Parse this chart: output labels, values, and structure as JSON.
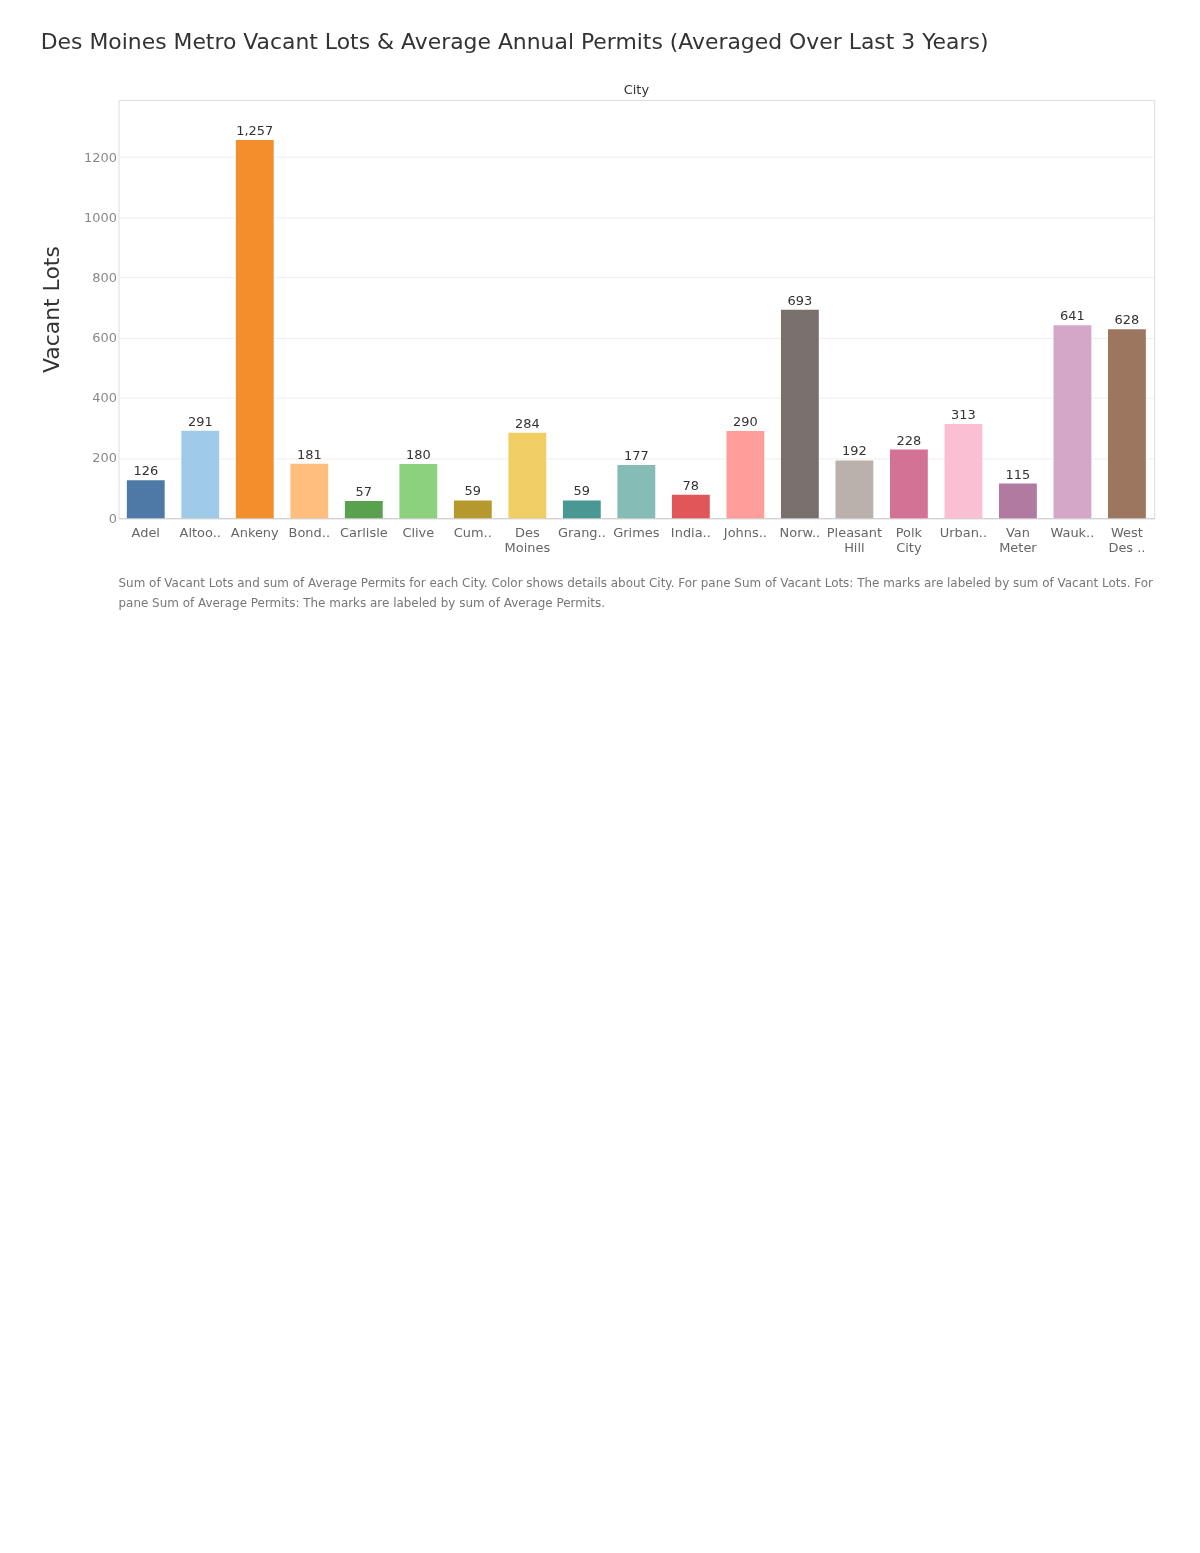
{
  "chart_data": {
    "type": "bar",
    "title": "Des Moines Metro Vacant Lots & Average Annual Permits (Averaged Over Last 3 Years)",
    "xlabel": "City",
    "ylabel": "Vacant Lots",
    "categories": [
      "Adel",
      "Altoo..",
      "Ankeny",
      "Bond..",
      "Carlisle",
      "Clive",
      "Cum..",
      "Des Moines",
      "Grang..",
      "Grimes",
      "India..",
      "Johns..",
      "Norw..",
      "Pleasant Hill",
      "Polk City",
      "Urban..",
      "Van Meter",
      "Wauk..",
      "West Des .."
    ],
    "values": [
      126,
      291,
      1257,
      181,
      57,
      180,
      59,
      284,
      59,
      177,
      78,
      290,
      693,
      192,
      228,
      313,
      115,
      641,
      628
    ],
    "colors": [
      "#4e79a7",
      "#a0cbe8",
      "#f28e2b",
      "#ffbe7d",
      "#59a14f",
      "#8cd17d",
      "#b6992d",
      "#f1ce63",
      "#499894",
      "#86bcb6",
      "#e15759",
      "#ff9d9a",
      "#79706e",
      "#bab0ac",
      "#d37295",
      "#fabfd2",
      "#b07aa1",
      "#d4a6c8",
      "#9d7660"
    ],
    "ylim": [
      0,
      1390
    ],
    "yticks": [
      0,
      200,
      400,
      600,
      800,
      1000,
      1200
    ],
    "grid": "y",
    "legend": false,
    "value_labels": [
      "126",
      "291",
      "1,257",
      "181",
      "57",
      "180",
      "59",
      "284",
      "59",
      "177",
      "78",
      "290",
      "693",
      "192",
      "228",
      "313",
      "115",
      "641",
      "628"
    ],
    "annotations": [
      "Sum of Vacant Lots and sum of Average Permits for each City.  Color shows details about City.  For pane Sum of Vacant Lots:  The marks are labeled by sum of Vacant Lots.  For pane Sum of Average Permits:  The marks are labeled by sum of Average Permits."
    ]
  }
}
